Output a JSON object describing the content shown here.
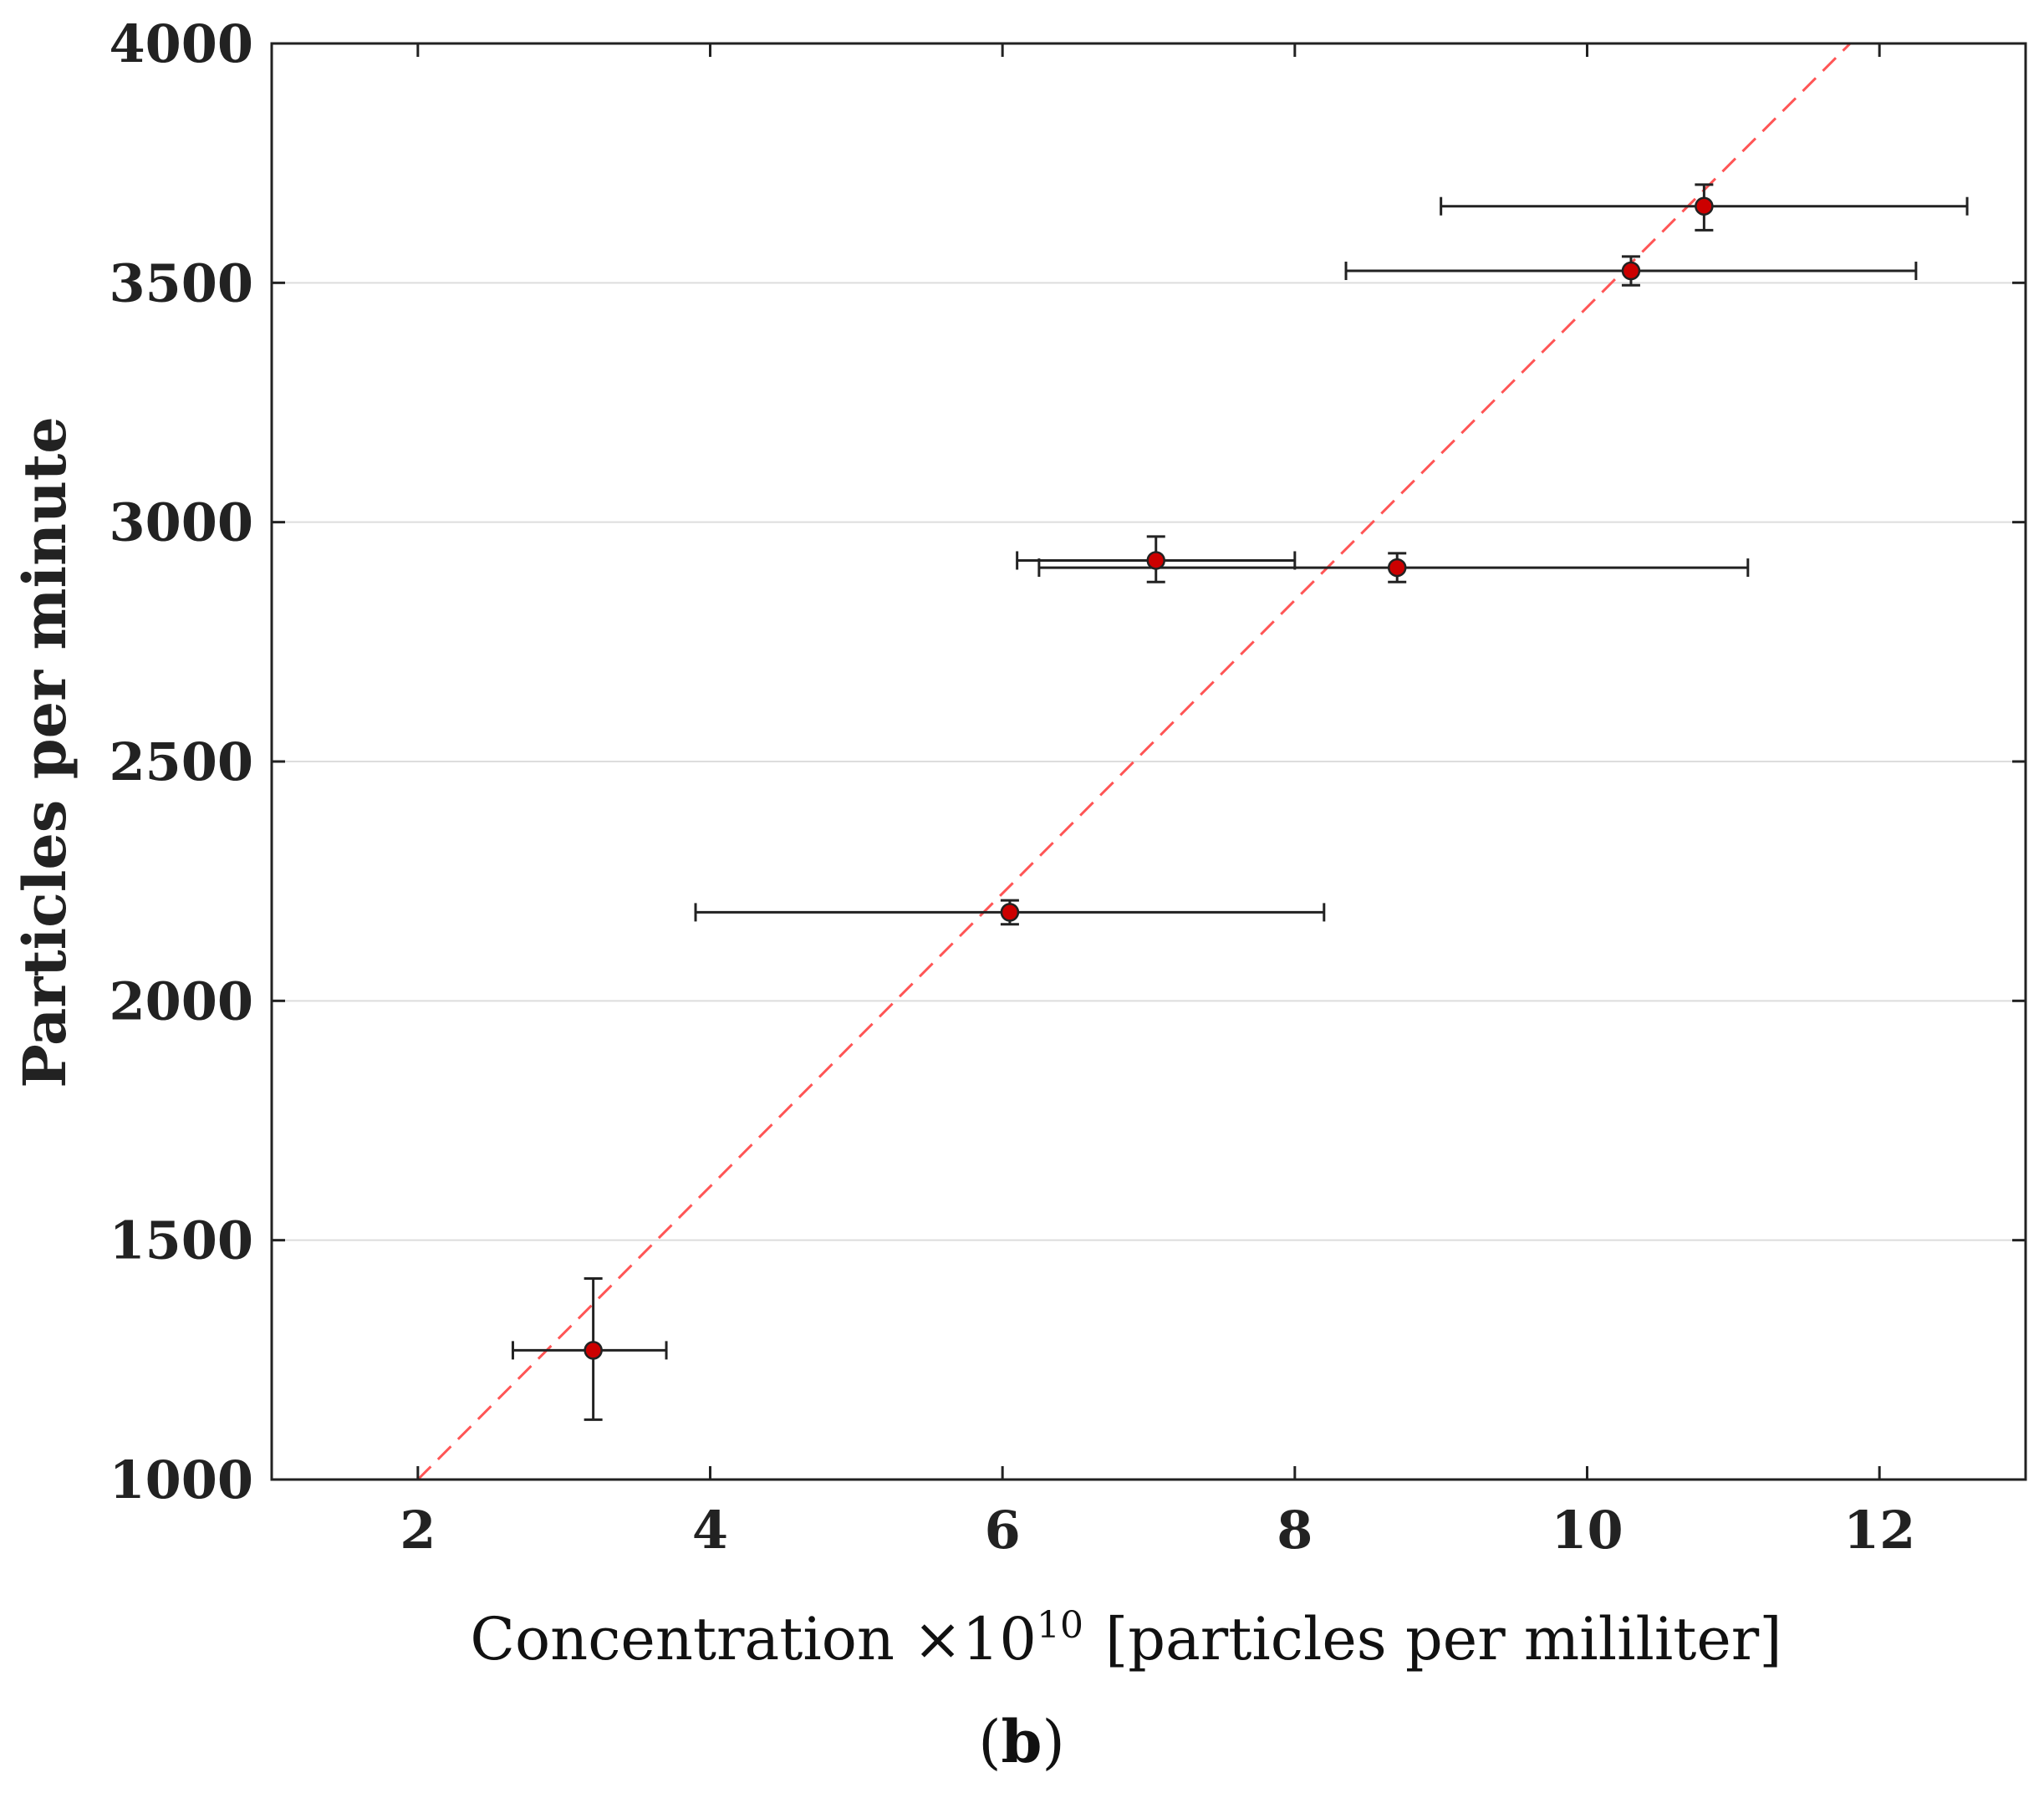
{
  "chart_data": {
    "type": "scatter",
    "title": "",
    "xlabel": {
      "main": "Concentration ×10",
      "exponent": "10",
      "units": "[particles per mililiter]"
    },
    "ylabel": "Particles per minute",
    "panel_label": {
      "open": "(",
      "letter": "b",
      "close": ")"
    },
    "xlim": [
      1,
      13
    ],
    "ylim": [
      1000,
      4000
    ],
    "xticks": [
      2,
      4,
      6,
      8,
      10,
      12
    ],
    "yticks": [
      1000,
      1500,
      2000,
      2500,
      3000,
      3500,
      4000
    ],
    "grid": "horizontal",
    "points": [
      {
        "x": 3.2,
        "y": 1270,
        "xerr": [
          2.65,
          3.7
        ],
        "yerr": [
          1125,
          1420
        ]
      },
      {
        "x": 6.05,
        "y": 2185,
        "xerr": [
          3.9,
          8.2
        ],
        "yerr": [
          2160,
          2210
        ]
      },
      {
        "x": 7.05,
        "y": 2920,
        "xerr": [
          6.1,
          8.0
        ],
        "yerr": [
          2875,
          2970
        ]
      },
      {
        "x": 8.7,
        "y": 2905,
        "xerr": [
          6.25,
          11.1
        ],
        "yerr": [
          2875,
          2935
        ]
      },
      {
        "x": 10.3,
        "y": 3525,
        "xerr": [
          8.35,
          12.25
        ],
        "yerr": [
          3495,
          3555
        ]
      },
      {
        "x": 10.8,
        "y": 3660,
        "xerr": [
          9.0,
          12.6
        ],
        "yerr": [
          3610,
          3705
        ]
      }
    ],
    "fit_line": {
      "x": [
        2,
        11.8
      ],
      "y": [
        1000,
        4000
      ],
      "style": "dashed"
    },
    "colors": {
      "marker": "#cc0000",
      "fit": "#ff5555",
      "errorbar": "#222222",
      "grid": "#dddddd"
    }
  }
}
